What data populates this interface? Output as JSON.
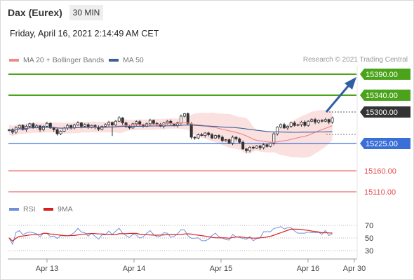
{
  "header": {
    "title": "Dax (Eurex)",
    "timeframe": "30 MIN",
    "datetime": "Friday, April 16, 2021 2:14:49 AM CET"
  },
  "legend": {
    "ma20_label": "MA 20 + Bollinger Bands",
    "ma50_label": "MA 50",
    "copyright": "Research © 2021 Trading Central",
    "rsi_label": "RSI",
    "ma9_label": "9MA"
  },
  "colors": {
    "green_level": "#4aa31a",
    "blue_level": "#3b6fd8",
    "red_level": "#e24b4b",
    "current_tag": "#333333",
    "ma20": "#f08a8a",
    "bollinger": "#fbe0e0",
    "ma50": "#3a5f9a",
    "arrow": "#2f5ea3",
    "rsi": "#6f8fdb",
    "rsi_ma": "#d62020"
  },
  "chart_data": [
    {
      "type": "candlestick",
      "title": "Dax (Eurex)",
      "interval": "30 MIN",
      "x_ticks": [
        "Apr 13",
        "Apr 14",
        "Apr 15",
        "Apr 16",
        "Apr 30"
      ],
      "ylim": [
        15085,
        15420
      ],
      "levels": [
        {
          "value": 15390.0,
          "label": "15390.00",
          "kind": "resistance",
          "color": "#4aa31a"
        },
        {
          "value": 15340.0,
          "label": "15340.00",
          "kind": "resistance",
          "color": "#4aa31a"
        },
        {
          "value": 15300.0,
          "label": "15300.00",
          "kind": "current",
          "color": "#333333"
        },
        {
          "value": 15225.0,
          "label": "15225.00",
          "kind": "pivot",
          "color": "#3b6fd8"
        },
        {
          "value": 15160.0,
          "label": "15160.00",
          "kind": "support",
          "color": "#e24b4b"
        },
        {
          "value": 15110.0,
          "label": "15110.00",
          "kind": "support",
          "color": "#e24b4b"
        }
      ],
      "closes": [
        15258,
        15252,
        15262,
        15268,
        15258,
        15266,
        15272,
        15263,
        15267,
        15258,
        15266,
        15273,
        15262,
        15258,
        15248,
        15254,
        15262,
        15268,
        15262,
        15269,
        15274,
        15266,
        15270,
        15263,
        15268,
        15264,
        15259,
        15266,
        15270,
        15275,
        15269,
        15278,
        15286,
        15274,
        15266,
        15262,
        15272,
        15277,
        15270,
        15266,
        15272,
        15280,
        15273,
        15270,
        15266,
        15274,
        15278,
        15272,
        15268,
        15274,
        15290,
        15296,
        15272,
        15240,
        15238,
        15246,
        15244,
        15250,
        15246,
        15238,
        15244,
        15240,
        15232,
        15234,
        15226,
        15240,
        15236,
        15228,
        15212,
        15208,
        15216,
        15214,
        15219,
        15215,
        15222,
        15218,
        15226,
        15248,
        15264,
        15270,
        15262,
        15266,
        15274,
        15268,
        15270,
        15276,
        15268,
        15278,
        15282,
        15276,
        15280,
        15278,
        15282,
        15276,
        15286
      ],
      "series": [
        {
          "name": "MA 20 + Bollinger Bands"
        },
        {
          "name": "MA 50"
        }
      ],
      "legend_position": "top-left"
    },
    {
      "type": "line",
      "title": "RSI",
      "y_ticks": [
        70,
        50,
        30
      ],
      "ylim": [
        20,
        80
      ],
      "series": [
        {
          "name": "RSI"
        },
        {
          "name": "9MA"
        }
      ]
    }
  ]
}
